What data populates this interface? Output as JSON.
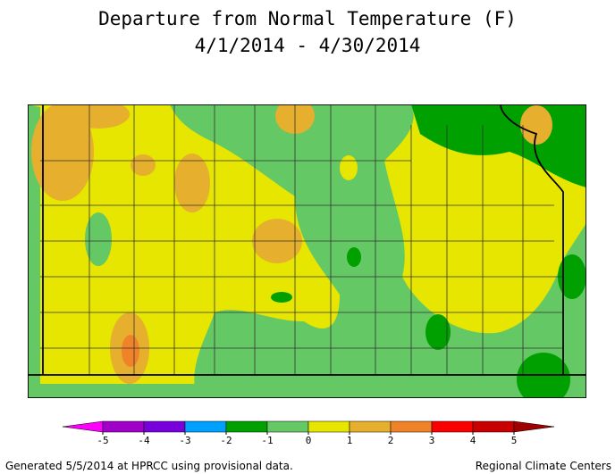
{
  "header": {
    "title": "Departure from Normal Temperature (F)",
    "subtitle": "4/1/2014 - 4/30/2014"
  },
  "legend": {
    "ticks": [
      -5,
      -4,
      -3,
      -2,
      -1,
      0,
      1,
      2,
      3,
      4,
      5
    ],
    "colors": [
      "#ff00ff",
      "#a000c8",
      "#7800dc",
      "#00a0ff",
      "#00a000",
      "#64c864",
      "#e6e600",
      "#e6af2d",
      "#f08228",
      "#fa0000",
      "#c80000",
      "#a00000"
    ]
  },
  "footer": {
    "left": "Generated 5/5/2014 at HPRCC using provisional data.",
    "right": "Regional Climate Centers"
  }
}
